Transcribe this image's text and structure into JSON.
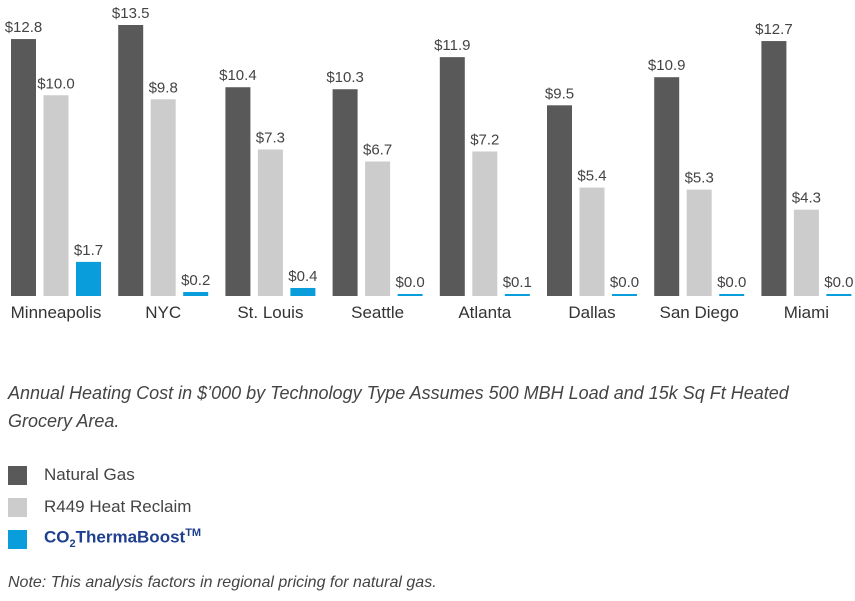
{
  "chart_data": {
    "type": "bar",
    "categories": [
      "Minneapolis",
      "NYC",
      "St. Louis",
      "Seattle",
      "Atlanta",
      "Dallas",
      "San Diego",
      "Miami"
    ],
    "series": [
      {
        "name": "Natural Gas",
        "color": "#595959",
        "values": [
          12.8,
          13.5,
          10.4,
          10.3,
          11.9,
          9.5,
          10.9,
          12.7
        ],
        "labels": [
          "$12.8",
          "$13.5",
          "$10.4",
          "$10.3",
          "$11.9",
          "$9.5",
          "$10.9",
          "$12.7"
        ]
      },
      {
        "name": "R449 Heat Reclaim",
        "color": "#cccccc",
        "values": [
          10.0,
          9.8,
          7.3,
          6.7,
          7.2,
          5.4,
          5.3,
          4.3
        ],
        "labels": [
          "$10.0",
          "$9.8",
          "$7.3",
          "$6.7",
          "$7.2",
          "$5.4",
          "$5.3",
          "$4.3"
        ]
      },
      {
        "name": "CO2ThermaBoost™",
        "color": "#0a9ddb",
        "values": [
          1.7,
          0.2,
          0.4,
          0.0,
          0.1,
          0.0,
          0.0,
          0.0
        ],
        "labels": [
          "$1.7",
          "$0.2",
          "$0.4",
          "$0.0",
          "$0.1",
          "$0.0",
          "$0.0",
          "$0.0"
        ]
      }
    ],
    "ylim": [
      0,
      13.5
    ],
    "grid": false,
    "legend_position": "bottom-left"
  },
  "caption": "Annual Heating Cost in $’000 by Technology Type Assumes 500 MBH Load and 15k Sq Ft Heated Grocery Area.",
  "legend": {
    "natural_gas": "Natural Gas",
    "r449": "R449 Heat Reclaim",
    "brand_prefix": "CO",
    "brand_sub": "2",
    "brand_main": "ThermaBoost",
    "brand_sup": "TM"
  },
  "note": "Note: This analysis factors in regional pricing for natural gas."
}
